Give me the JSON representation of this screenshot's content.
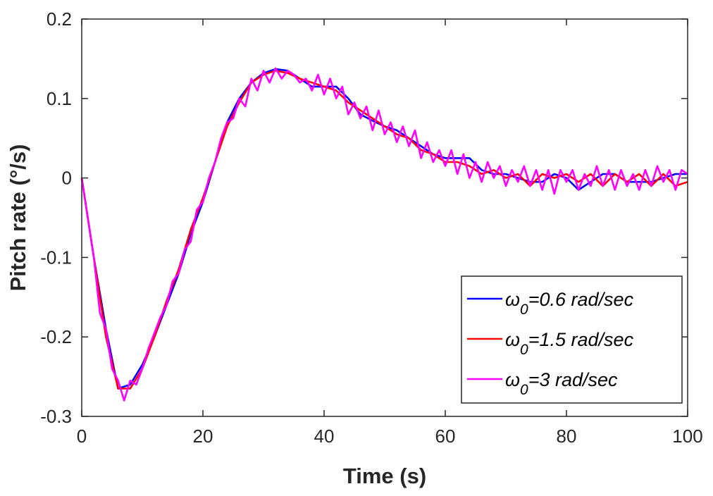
{
  "chart_data": {
    "type": "line",
    "title": "",
    "xlabel": "Time (s)",
    "ylabel": "Pitch rate (°/s)",
    "xlim": [
      0,
      100
    ],
    "ylim": [
      -0.3,
      0.2
    ],
    "xticks": [
      "0",
      "20",
      "40",
      "60",
      "80",
      "100"
    ],
    "yticks": [
      "0.2",
      "0.1",
      "0",
      "-0.1",
      "-0.2",
      "-0.3"
    ],
    "grid": false,
    "legend_position": "bottom-right",
    "series": [
      {
        "name": "ω0=0.6 rad/sec",
        "symbol": "ω",
        "subscript": "0",
        "suffix": "=0.6 rad/sec",
        "color": "#0000ff",
        "x_step": 2,
        "y": [
          0,
          -0.1,
          -0.19,
          -0.265,
          -0.26,
          -0.235,
          -0.2,
          -0.16,
          -0.12,
          -0.07,
          -0.03,
          0.02,
          0.07,
          0.1,
          0.12,
          0.132,
          0.137,
          0.135,
          0.125,
          0.115,
          0.115,
          0.115,
          0.1,
          0.08,
          0.072,
          0.065,
          0.06,
          0.05,
          0.04,
          0.03,
          0.025,
          0.025,
          0.025,
          0.01,
          0.005,
          0.005,
          0,
          -0.005,
          -0.005,
          0.005,
          0,
          -0.015,
          -0.005,
          0.005,
          0.005,
          -0.005,
          -0.005,
          -0.005,
          0,
          0.005,
          0.005
        ]
      },
      {
        "name": "ω0=1.5 rad/sec",
        "symbol": "ω",
        "subscript": "0",
        "suffix": "=1.5 rad/sec",
        "color": "#ff0000",
        "x_step": 2,
        "y": [
          0,
          -0.1,
          -0.2,
          -0.265,
          -0.265,
          -0.24,
          -0.2,
          -0.155,
          -0.115,
          -0.065,
          -0.025,
          0.02,
          0.065,
          0.095,
          0.12,
          0.13,
          0.135,
          0.132,
          0.125,
          0.12,
          0.115,
          0.11,
          0.095,
          0.085,
          0.075,
          0.065,
          0.055,
          0.05,
          0.035,
          0.03,
          0.02,
          0.02,
          0.015,
          0.005,
          0.01,
          0,
          0.005,
          -0.01,
          0.005,
          0,
          0.005,
          -0.005,
          0.005,
          -0.01,
          0.005,
          -0.005,
          0.005,
          -0.01,
          0.005,
          -0.01,
          -0.005
        ]
      },
      {
        "name": "ω0=3 rad/sec",
        "symbol": "ω",
        "subscript": "0",
        "suffix": "=3 rad/sec",
        "color": "#ff00ff",
        "x_step": 1,
        "y": [
          0,
          -0.05,
          -0.1,
          -0.17,
          -0.19,
          -0.24,
          -0.255,
          -0.28,
          -0.255,
          -0.26,
          -0.24,
          -0.215,
          -0.195,
          -0.175,
          -0.16,
          -0.13,
          -0.12,
          -0.09,
          -0.08,
          -0.04,
          -0.03,
          0.0,
          0.02,
          0.05,
          0.07,
          0.075,
          0.1,
          0.09,
          0.125,
          0.11,
          0.135,
          0.12,
          0.138,
          0.125,
          0.135,
          0.13,
          0.12,
          0.125,
          0.11,
          0.13,
          0.105,
          0.125,
          0.1,
          0.115,
          0.08,
          0.095,
          0.075,
          0.09,
          0.06,
          0.085,
          0.055,
          0.07,
          0.045,
          0.065,
          0.04,
          0.06,
          0.025,
          0.045,
          0.02,
          0.035,
          0.015,
          0.035,
          0.005,
          0.03,
          0.0,
          0.02,
          -0.005,
          0.02,
          0.0,
          0.015,
          -0.01,
          0.01,
          -0.005,
          0.015,
          -0.01,
          0.01,
          -0.015,
          0.01,
          -0.02,
          0.01,
          -0.005,
          0.01,
          -0.015,
          0.005,
          -0.01,
          0.015,
          -0.01,
          0.01,
          -0.015,
          0.01,
          -0.01,
          0.005,
          -0.015,
          0.01,
          -0.01,
          0.015,
          -0.005,
          0.01,
          -0.015,
          0.01,
          0.005
        ]
      }
    ]
  }
}
